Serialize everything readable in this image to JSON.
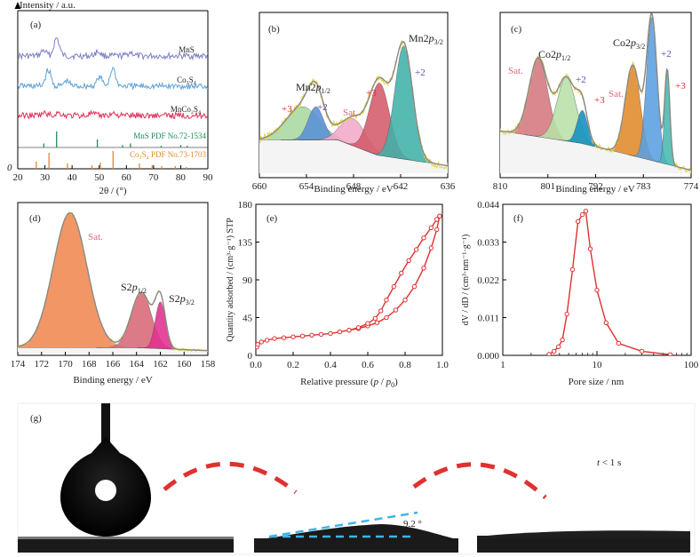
{
  "figure": {
    "panel_a": {
      "label": "(a)",
      "ylabel": "Intensity / a.u.",
      "xlabel": "2θ / (°)",
      "ticks": [
        "20",
        "30",
        "40",
        "50",
        "60",
        "70",
        "80",
        "90"
      ],
      "zero": "0",
      "trace_names": [
        "MnS",
        "Co₃S₄",
        "MnCo₂S₄"
      ],
      "pdf_mns": "MnS PDF No.72-1534",
      "pdf_co": "Co₃S₄ PDF No.73-1703"
    },
    "panel_b": {
      "label": "(b)",
      "xlabel": "Binding energy / eV",
      "ticks": [
        "660",
        "654",
        "648",
        "642",
        "636"
      ],
      "annotations": [
        "Mn2p1/2",
        "Mn2p3/2",
        "+3",
        "+2",
        "Sat.",
        "+3",
        "+2"
      ]
    },
    "panel_c": {
      "label": "(c)",
      "xlabel": "Binding energy / eV",
      "ticks": [
        "810",
        "801",
        "792",
        "783",
        "774"
      ],
      "annotations": [
        "Co2p1/2",
        "Co2p3/2",
        "Sat.",
        "+2",
        "+3",
        "Sat.",
        "+2",
        "+3"
      ]
    },
    "panel_d": {
      "label": "(d)",
      "xlabel": "Binding energy / eV",
      "ticks": [
        "174",
        "172",
        "170",
        "168",
        "166",
        "164",
        "162",
        "160",
        "158"
      ],
      "annotations": [
        "Sat.",
        "S2p1/2",
        "S2p3/2"
      ]
    },
    "panel_e": {
      "label": "(e)",
      "xlabel": "Relative pressure (p / p₀)",
      "ylabel": "Quantity adsorbed / (cm³·g⁻¹) STP",
      "xticks": [
        "0.0",
        "0.2",
        "0.4",
        "0.6",
        "0.8",
        "1.0"
      ],
      "yticks": [
        "0",
        "45",
        "90",
        "135",
        "180"
      ]
    },
    "panel_f": {
      "label": "(f)",
      "xlabel": "Pore size / nm",
      "ylabel": "dV / dD / (cm³·nm⁻¹·g⁻¹)",
      "xticks": [
        "1",
        "10",
        "100"
      ],
      "yticks": [
        "0.000",
        "0.011",
        "0.022",
        "0.033",
        "0.044"
      ]
    },
    "panel_g": {
      "label": "(g)",
      "angle": "9.2 °",
      "time": "t < 1 s"
    }
  },
  "colors": {
    "mns": "#7b7fc4",
    "co3s4": "#5ba3d8",
    "mnco2s4": "#e0305a",
    "pdf_mns": "#1e8a5a",
    "pdf_co": "#e08a2a",
    "raw": "#e8d44a",
    "envelope": "#888888",
    "bet": "#e03030",
    "arrow": "#e03030",
    "angle": "#3fb3e6"
  },
  "chart_data": [
    {
      "panel": "a",
      "type": "line",
      "xlabel": "2θ / (°)",
      "ylabel": "Intensity / a.u.",
      "xlim": [
        20,
        90
      ],
      "series": [
        {
          "name": "MnS",
          "peaks": [
            [
              29.5,
              0.3
            ],
            [
              34.3,
              1.0
            ],
            [
              49.5,
              0.25
            ],
            [
              61.5,
              0.2
            ]
          ]
        },
        {
          "name": "Co₃S₄",
          "peaks": [
            [
              31.2,
              0.9
            ],
            [
              38.0,
              0.3
            ],
            [
              50.1,
              0.5
            ],
            [
              55.0,
              1.0
            ]
          ]
        },
        {
          "name": "MnCo₂S₄",
          "peaks": [
            [
              30.0,
              0.25
            ],
            [
              35.0,
              0.3
            ],
            [
              47.0,
              0.2
            ],
            [
              55.2,
              0.25
            ]
          ]
        }
      ],
      "reference_patterns": [
        {
          "name": "MnS PDF No.72-1534",
          "positions": [
            29.6,
            34.3,
            49.3,
            58.6,
            61.5,
            72.8,
            80.0,
            82.4
          ],
          "intensities": [
            0.25,
            1.0,
            0.5,
            0.15,
            0.25,
            0.1,
            0.15,
            0.1
          ]
        },
        {
          "name": "Co₃S₄ PDF No.73-1703",
          "positions": [
            26.8,
            31.5,
            38.3,
            47.3,
            50.4,
            55.1,
            64.8,
            69.5,
            73.0,
            78.0,
            82.1
          ],
          "intensities": [
            0.4,
            0.9,
            0.3,
            0.2,
            0.35,
            1.0,
            0.3,
            0.2,
            0.15,
            0.15,
            0.1
          ]
        }
      ]
    },
    {
      "panel": "b",
      "type": "area",
      "xlabel": "Binding energy / eV",
      "xlim": [
        660,
        636
      ],
      "background": [
        [
          660,
          0.22
        ],
        [
          650,
          0.22
        ],
        [
          645,
          0.12
        ],
        [
          636,
          0.05
        ]
      ],
      "components": [
        {
          "center": 654.5,
          "height": 0.22,
          "width": 3.0,
          "color": "#a8d8a0"
        },
        {
          "center": 652.8,
          "height": 0.22,
          "width": 1.4,
          "color": "#5a8fd6"
        },
        {
          "center": 648.0,
          "height": 0.18,
          "width": 2.2,
          "color": "#f2a8c8"
        },
        {
          "center": 644.7,
          "height": 0.48,
          "width": 1.8,
          "color": "#d45a6a"
        },
        {
          "center": 641.6,
          "height": 0.75,
          "width": 1.6,
          "color": "#40b0a8"
        }
      ]
    },
    {
      "panel": "c",
      "type": "area",
      "xlabel": "Binding energy / eV",
      "xlim": [
        810,
        774
      ],
      "background": [
        [
          810,
          0.28
        ],
        [
          795,
          0.2
        ],
        [
          789,
          0.15
        ],
        [
          774,
          0.02
        ]
      ],
      "components": [
        {
          "center": 802.8,
          "height": 0.52,
          "width": 2.5,
          "color": "#d4787e"
        },
        {
          "center": 797.5,
          "height": 0.42,
          "width": 2.5,
          "color": "#b8e0a8"
        },
        {
          "center": 794.5,
          "height": 0.22,
          "width": 1.4,
          "color": "#1090c0"
        },
        {
          "center": 785.0,
          "height": 0.6,
          "width": 2.0,
          "color": "#e08a2a"
        },
        {
          "center": 781.4,
          "height": 0.95,
          "width": 1.4,
          "color": "#5a9ee0"
        },
        {
          "center": 778.5,
          "height": 0.62,
          "width": 0.7,
          "color": "#48b8b0"
        }
      ]
    },
    {
      "panel": "d",
      "type": "area",
      "xlabel": "Binding energy / eV",
      "xlim": [
        174,
        158
      ],
      "background": [
        [
          174,
          0.04
        ],
        [
          164,
          0.04
        ],
        [
          158,
          0.02
        ]
      ],
      "components": [
        {
          "center": 169.6,
          "height": 0.92,
          "width": 2.0,
          "color": "#f08850"
        },
        {
          "center": 163.6,
          "height": 0.38,
          "width": 1.2,
          "color": "#d86878"
        },
        {
          "center": 162.0,
          "height": 0.32,
          "width": 0.6,
          "color": "#e03090"
        }
      ]
    },
    {
      "panel": "e",
      "type": "line",
      "xlabel": "Relative pressure (p / p₀)",
      "ylabel": "Quantity adsorbed / (cm³·g⁻¹) STP",
      "xlim": [
        0,
        1.0
      ],
      "ylim": [
        0,
        180
      ],
      "series": [
        {
          "x": [
            0.005,
            0.01,
            0.03,
            0.06,
            0.1,
            0.15,
            0.2,
            0.25,
            0.3,
            0.35,
            0.4,
            0.45,
            0.5,
            0.55,
            0.6,
            0.65,
            0.7,
            0.75,
            0.8,
            0.85,
            0.9,
            0.94,
            0.97,
            0.985
          ],
          "y": [
            10,
            13,
            16,
            18,
            20,
            21,
            22,
            23,
            24,
            25,
            26,
            28,
            30,
            32,
            35,
            39,
            45,
            54,
            66,
            82,
            104,
            128,
            150,
            166
          ]
        },
        {
          "x": [
            0.985,
            0.97,
            0.94,
            0.9,
            0.86,
            0.82,
            0.78,
            0.74,
            0.7,
            0.67,
            0.64,
            0.6,
            0.55,
            0.5
          ],
          "y": [
            166,
            162,
            152,
            140,
            126,
            113,
            98,
            82,
            66,
            53,
            44,
            38,
            33,
            30
          ]
        }
      ]
    },
    {
      "panel": "f",
      "type": "line",
      "xlabel": "Pore size / nm",
      "ylabel": "dV / dD / (cm³·nm⁻¹·g⁻¹)",
      "xscale": "log",
      "xlim": [
        1,
        100
      ],
      "ylim": [
        0,
        0.044
      ],
      "series": [
        {
          "x": [
            3.1,
            3.5,
            3.9,
            4.3,
            4.8,
            5.5,
            6.3,
            7.0,
            7.6,
            8.5,
            10.0,
            12.5,
            17.0,
            30.0,
            60.0
          ],
          "y": [
            0.0003,
            0.0012,
            0.0025,
            0.0045,
            0.012,
            0.025,
            0.039,
            0.041,
            0.042,
            0.031,
            0.019,
            0.0095,
            0.0035,
            0.0012,
            0.0002
          ]
        }
      ]
    }
  ]
}
